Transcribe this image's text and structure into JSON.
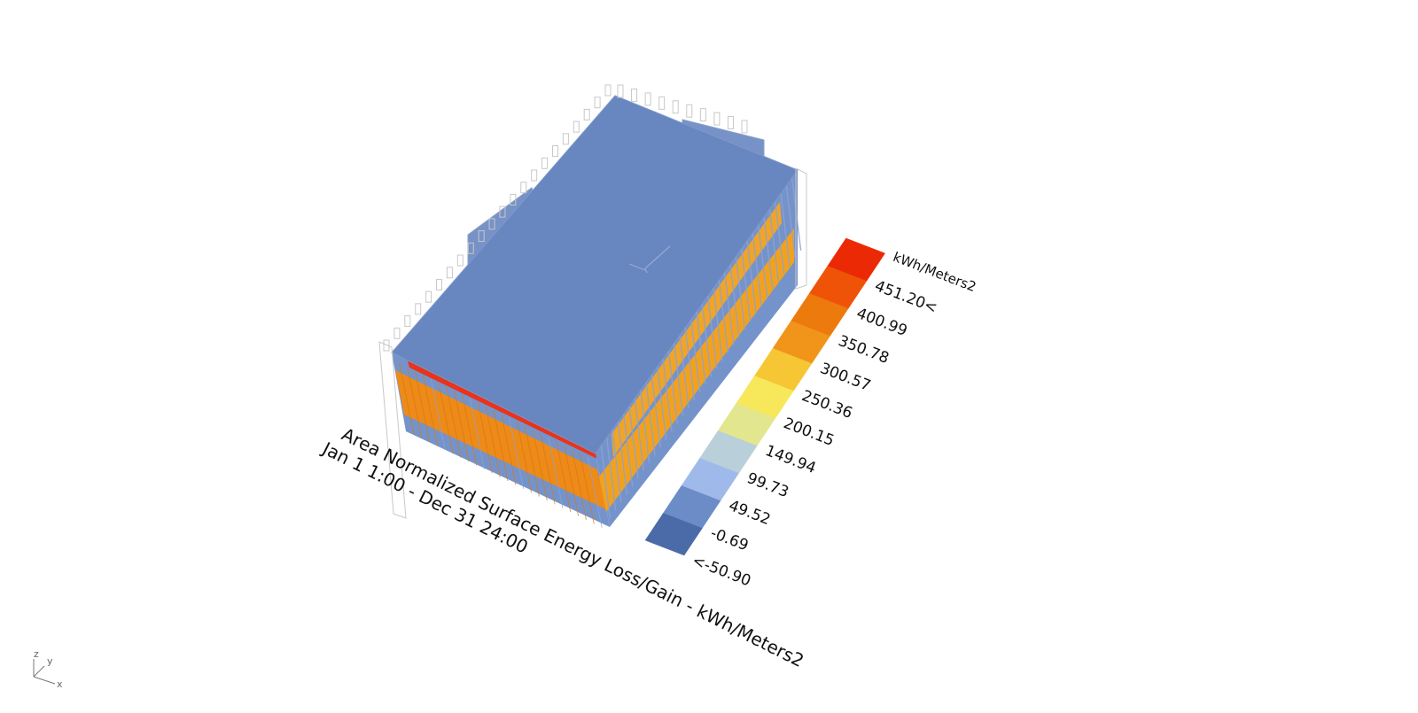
{
  "viewport": {
    "title_line1": "Area Normalized Surface Energy Loss/Gain  - kWh/Meters2",
    "title_line2": "Jan 1 1:00 - Dec 31 24:00"
  },
  "legend": {
    "unit": "kWh/Meters2",
    "labels": [
      "<-50.90",
      "-0.69",
      "49.52",
      "99.73",
      "149.94",
      "200.15",
      "250.36",
      "300.57",
      "350.78",
      "400.99",
      "451.20<"
    ],
    "colors": [
      "#4b6aa8",
      "#6b8cc7",
      "#9fbaea",
      "#b9cfd9",
      "#e2e68f",
      "#f7e75a",
      "#f6c634",
      "#f0951a",
      "#ed7a0c",
      "#ef5308",
      "#eb2a05"
    ]
  },
  "model": {
    "roof_color": "#6886c0",
    "wall_base_color": "#7593cb",
    "south_wall_color": "#ee8a18",
    "east_wall_color": "#f2a11f",
    "hot_strip_color": "#e9331a"
  },
  "axes_gizmo": {
    "z": "z",
    "y": "y",
    "x": "x"
  }
}
